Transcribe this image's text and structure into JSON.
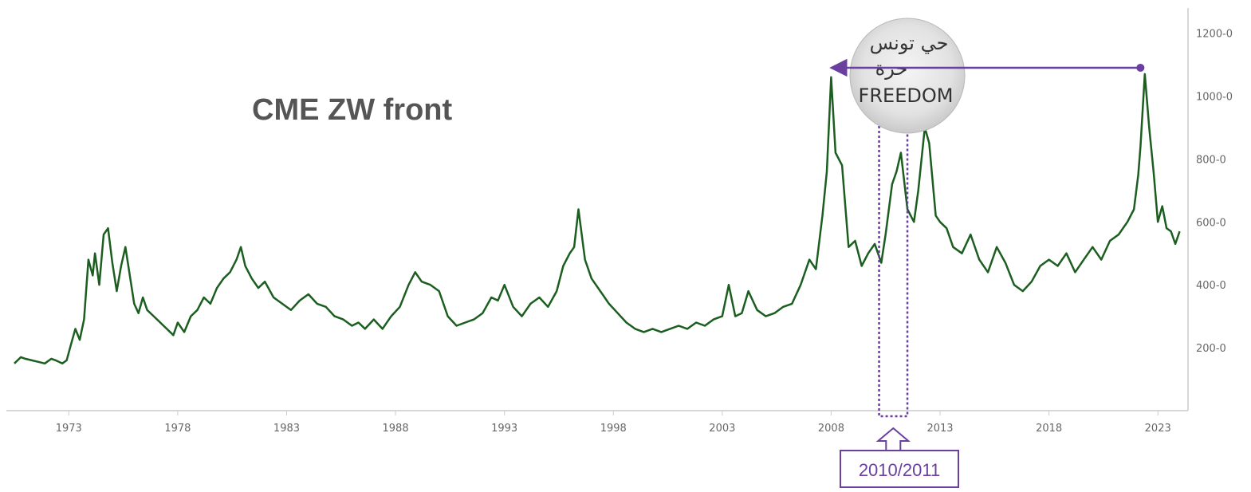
{
  "chart_data": {
    "type": "line",
    "title": "CME ZW front",
    "xlabel": "",
    "ylabel": "",
    "x_ticks": [
      "1973",
      "1978",
      "1983",
      "1988",
      "1993",
      "1998",
      "2003",
      "2008",
      "2013",
      "2018",
      "2023"
    ],
    "y_ticks": [
      "200-0",
      "400-0",
      "600-0",
      "800-0",
      "1000-0",
      "1200-0"
    ],
    "xlim": [
      1970.5,
      2024.2
    ],
    "ylim": [
      0,
      1280
    ],
    "grid": false,
    "line_color": "#1b5e20",
    "annotation_color": "#6a3fa0",
    "series": [
      {
        "x": [
          1970.5,
          1970.8,
          1971.0,
          1971.3,
          1971.6,
          1971.9,
          1972.2,
          1972.4,
          1972.7,
          1972.9,
          1973.1,
          1973.3,
          1973.5,
          1973.7,
          1973.9,
          1974.1,
          1974.2,
          1974.4,
          1974.6,
          1974.8,
          1975.0,
          1975.2,
          1975.4,
          1975.6,
          1975.8,
          1976.0,
          1976.2,
          1976.4,
          1976.6,
          1976.9,
          1977.2,
          1977.5,
          1977.8,
          1978.0,
          1978.3,
          1978.6,
          1978.9,
          1979.2,
          1979.5,
          1979.8,
          1980.1,
          1980.4,
          1980.7,
          1980.9,
          1981.1,
          1981.4,
          1981.7,
          1982.0,
          1982.4,
          1982.8,
          1983.2,
          1983.6,
          1984.0,
          1984.4,
          1984.8,
          1985.2,
          1985.6,
          1986.0,
          1986.3,
          1986.6,
          1987.0,
          1987.4,
          1987.8,
          1988.2,
          1988.6,
          1988.9,
          1989.2,
          1989.6,
          1990.0,
          1990.4,
          1990.8,
          1991.2,
          1991.6,
          1992.0,
          1992.4,
          1992.7,
          1993.0,
          1993.4,
          1993.8,
          1994.2,
          1994.6,
          1995.0,
          1995.4,
          1995.7,
          1996.0,
          1996.2,
          1996.4,
          1996.7,
          1997.0,
          1997.4,
          1997.8,
          1998.2,
          1998.6,
          1999.0,
          1999.4,
          1999.8,
          2000.2,
          2000.6,
          2001.0,
          2001.4,
          2001.8,
          2002.2,
          2002.6,
          2003.0,
          2003.3,
          2003.6,
          2003.9,
          2004.2,
          2004.6,
          2005.0,
          2005.4,
          2005.8,
          2006.2,
          2006.6,
          2007.0,
          2007.3,
          2007.6,
          2007.8,
          2008.0,
          2008.2,
          2008.5,
          2008.8,
          2009.1,
          2009.4,
          2009.7,
          2010.0,
          2010.3,
          2010.5,
          2010.8,
          2011.0,
          2011.2,
          2011.5,
          2011.8,
          2012.0,
          2012.3,
          2012.5,
          2012.8,
          2013.0,
          2013.3,
          2013.6,
          2014.0,
          2014.4,
          2014.8,
          2015.2,
          2015.6,
          2016.0,
          2016.4,
          2016.8,
          2017.2,
          2017.6,
          2018.0,
          2018.4,
          2018.8,
          2019.2,
          2019.6,
          2020.0,
          2020.4,
          2020.8,
          2021.2,
          2021.6,
          2021.9,
          2022.1,
          2022.2,
          2022.4,
          2022.6,
          2022.8,
          2023.0,
          2023.2,
          2023.4,
          2023.6,
          2023.8,
          2024.0
        ],
        "values": [
          150,
          170,
          165,
          160,
          155,
          150,
          165,
          160,
          150,
          160,
          210,
          260,
          225,
          290,
          480,
          430,
          500,
          400,
          560,
          580,
          470,
          380,
          460,
          520,
          430,
          340,
          310,
          360,
          320,
          300,
          280,
          260,
          240,
          280,
          250,
          300,
          320,
          360,
          340,
          390,
          420,
          440,
          480,
          520,
          460,
          420,
          390,
          410,
          360,
          340,
          320,
          350,
          370,
          340,
          330,
          300,
          290,
          270,
          280,
          260,
          290,
          260,
          300,
          330,
          400,
          440,
          410,
          400,
          380,
          300,
          270,
          280,
          290,
          310,
          360,
          350,
          400,
          330,
          300,
          340,
          360,
          330,
          380,
          460,
          500,
          520,
          640,
          480,
          420,
          380,
          340,
          310,
          280,
          260,
          250,
          260,
          250,
          260,
          270,
          260,
          280,
          270,
          290,
          300,
          400,
          300,
          310,
          380,
          320,
          300,
          310,
          330,
          340,
          400,
          480,
          450,
          620,
          760,
          1060,
          820,
          780,
          520,
          540,
          460,
          500,
          530,
          470,
          560,
          720,
          760,
          820,
          640,
          600,
          700,
          900,
          850,
          620,
          600,
          580,
          520,
          500,
          560,
          480,
          440,
          520,
          470,
          400,
          380,
          410,
          460,
          480,
          460,
          500,
          440,
          480,
          520,
          480,
          540,
          560,
          600,
          640,
          750,
          840,
          1070,
          900,
          760,
          600,
          650,
          580,
          570,
          530,
          570
        ]
      }
    ],
    "annotations": {
      "period_label": "2010/2011",
      "period_range": [
        2010.2,
        2011.5
      ],
      "arrow_from": [
        2022.2,
        1090
      ],
      "arrow_to": [
        2008.0,
        1090
      ]
    },
    "stamp_text": {
      "line1": "حي تونس",
      "line2": "حرة",
      "line3": "FREEDOM"
    }
  }
}
